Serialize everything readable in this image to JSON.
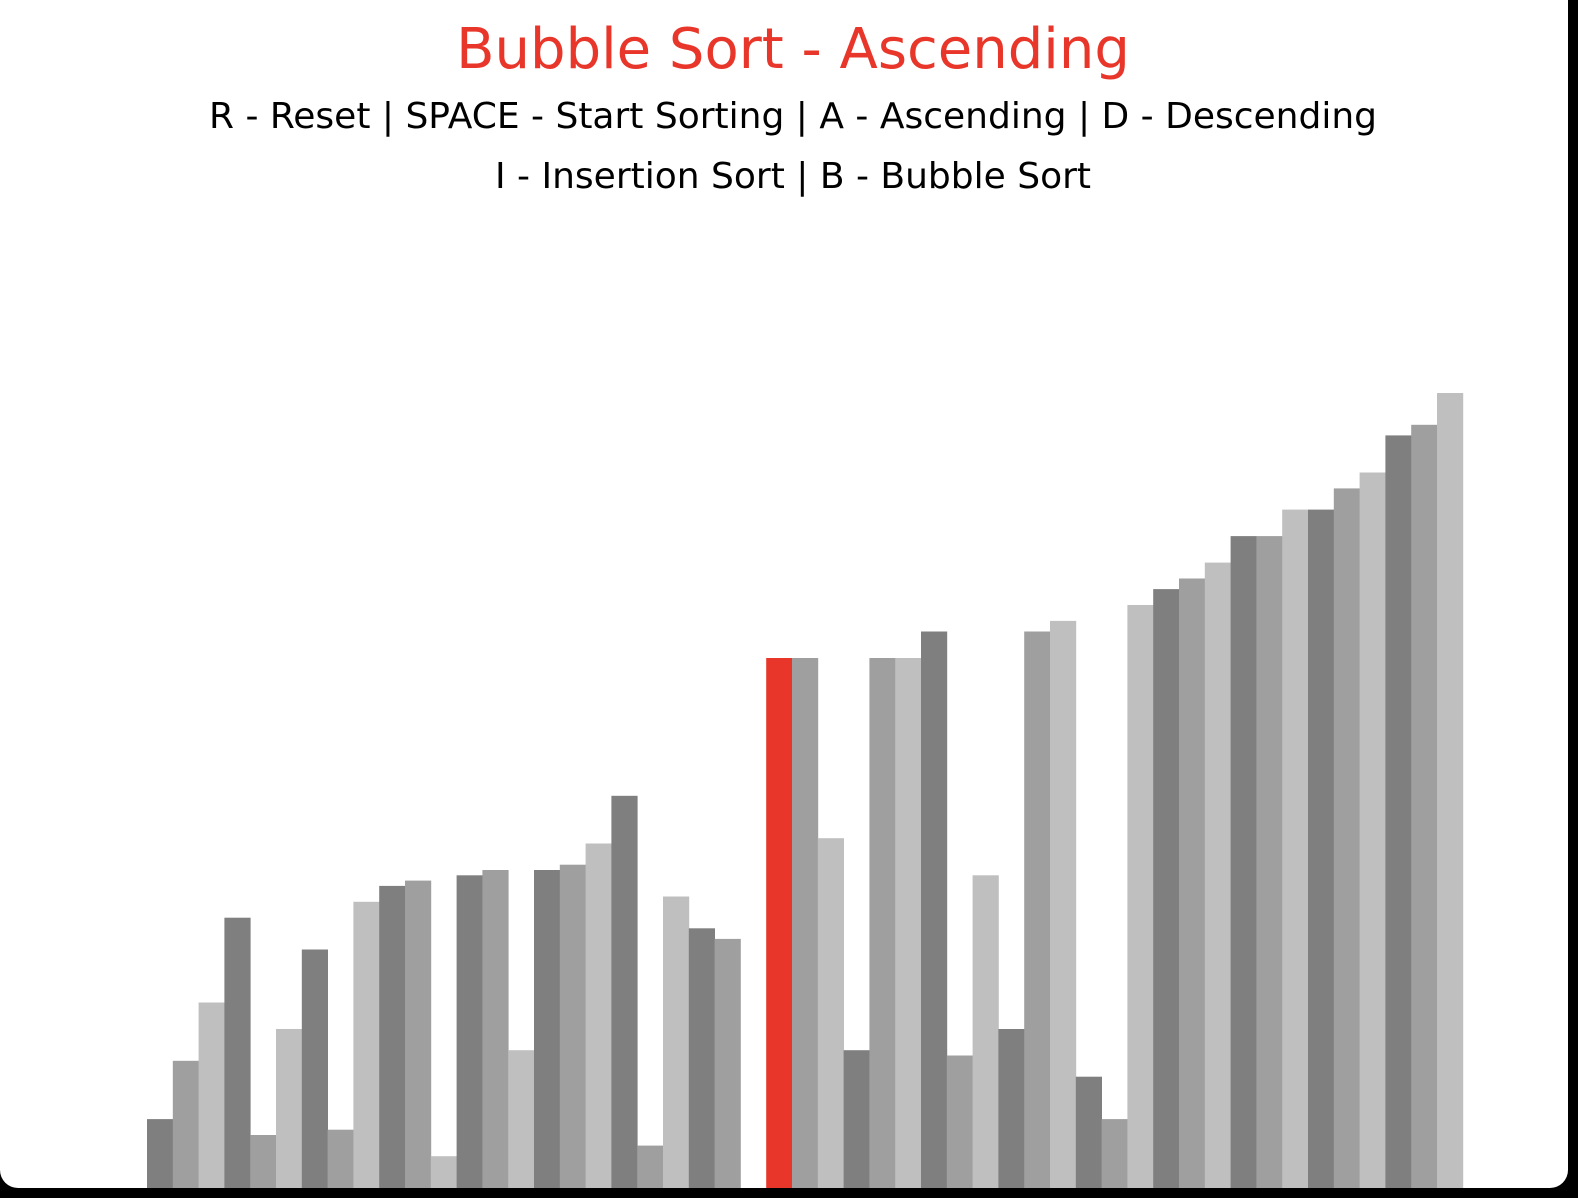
{
  "title": "Bubble Sort - Ascending",
  "instructions": {
    "line1": "R - Reset | SPACE - Start Sorting | A - Ascending | D - Descending",
    "line2": "I - Insertion Sort | B - Bubble Sort"
  },
  "colors": {
    "title": "#e8372a",
    "highlight": "#e8372a",
    "bar_shades": [
      "#7f7f7f",
      "#9f9f9f",
      "#bfbfbf"
    ],
    "background": "#ffffff"
  },
  "chart_data": {
    "type": "bar",
    "value_max": 100,
    "highlight_index": 24,
    "values": [
      13,
      24,
      35,
      51,
      10,
      30,
      45,
      11,
      54,
      57,
      58,
      6,
      59,
      60,
      26,
      60,
      61,
      65,
      74,
      8,
      55,
      49,
      47,
      0,
      100,
      100,
      66,
      26,
      100,
      100,
      105,
      25,
      59,
      30,
      105,
      107,
      21,
      13,
      110,
      113,
      115,
      118,
      123,
      123,
      128,
      128,
      132,
      135,
      142,
      144,
      150
    ]
  }
}
